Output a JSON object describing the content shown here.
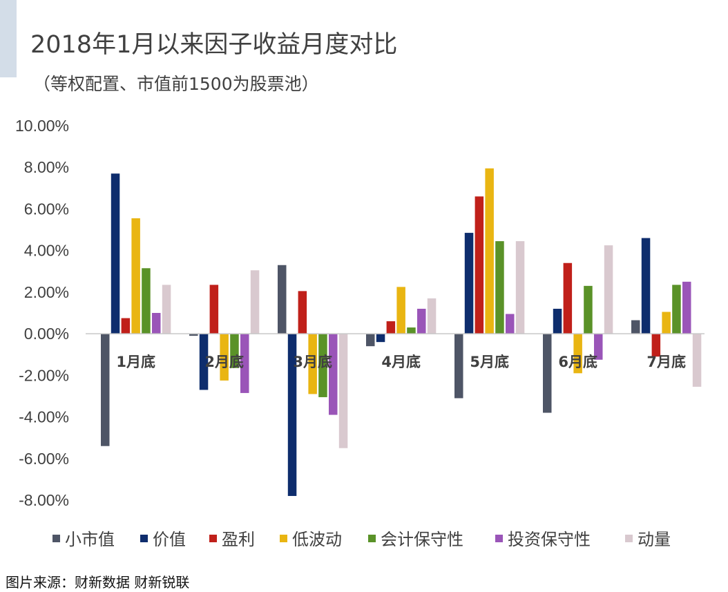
{
  "title": "2018年1月以来因子收益月度对比",
  "subtitle": "（等权配置、市值前1500为股票池）",
  "source": "图片来源：财新数据  财新锐联",
  "chart_data": {
    "type": "bar",
    "categories": [
      "1月底",
      "2月底",
      "3月底",
      "4月底",
      "5月底",
      "6月底",
      "7月底"
    ],
    "ylim": [
      -8,
      10
    ],
    "yticks": [
      -8,
      -6,
      -4,
      -2,
      0,
      2,
      4,
      6,
      8,
      10
    ],
    "ytick_labels": [
      "-8.00%",
      "-6.00%",
      "-4.00%",
      "-2.00%",
      "0.00%",
      "2.00%",
      "4.00%",
      "6.00%",
      "8.00%",
      "10.00%"
    ],
    "legend_position": "bottom",
    "grid": false,
    "series": [
      {
        "name": "小市值",
        "color": "#4e5566",
        "values": [
          -5.4,
          -0.1,
          3.3,
          -0.6,
          -3.1,
          -3.8,
          0.65
        ]
      },
      {
        "name": "价值",
        "color": "#0e2d6d",
        "values": [
          7.7,
          -2.7,
          -7.8,
          -0.4,
          4.85,
          1.2,
          4.6
        ]
      },
      {
        "name": "盈利",
        "color": "#c0201a",
        "values": [
          0.75,
          2.35,
          2.05,
          0.6,
          6.6,
          3.4,
          -1.1
        ]
      },
      {
        "name": "低波动",
        "color": "#e9b512",
        "values": [
          5.55,
          -2.25,
          -2.9,
          2.25,
          7.95,
          -1.9,
          1.05
        ]
      },
      {
        "name": "会计保守性",
        "color": "#5a9228",
        "values": [
          3.15,
          -1.65,
          -3.05,
          0.3,
          4.45,
          2.3,
          2.35
        ]
      },
      {
        "name": "投资保守性",
        "color": "#9a55b8",
        "values": [
          1.0,
          -2.85,
          -3.9,
          1.2,
          0.95,
          -1.25,
          2.5
        ]
      },
      {
        "name": "动量",
        "color": "#d9c9cf",
        "values": [
          2.35,
          3.05,
          -5.5,
          1.7,
          4.45,
          4.25,
          -2.55
        ]
      }
    ]
  }
}
